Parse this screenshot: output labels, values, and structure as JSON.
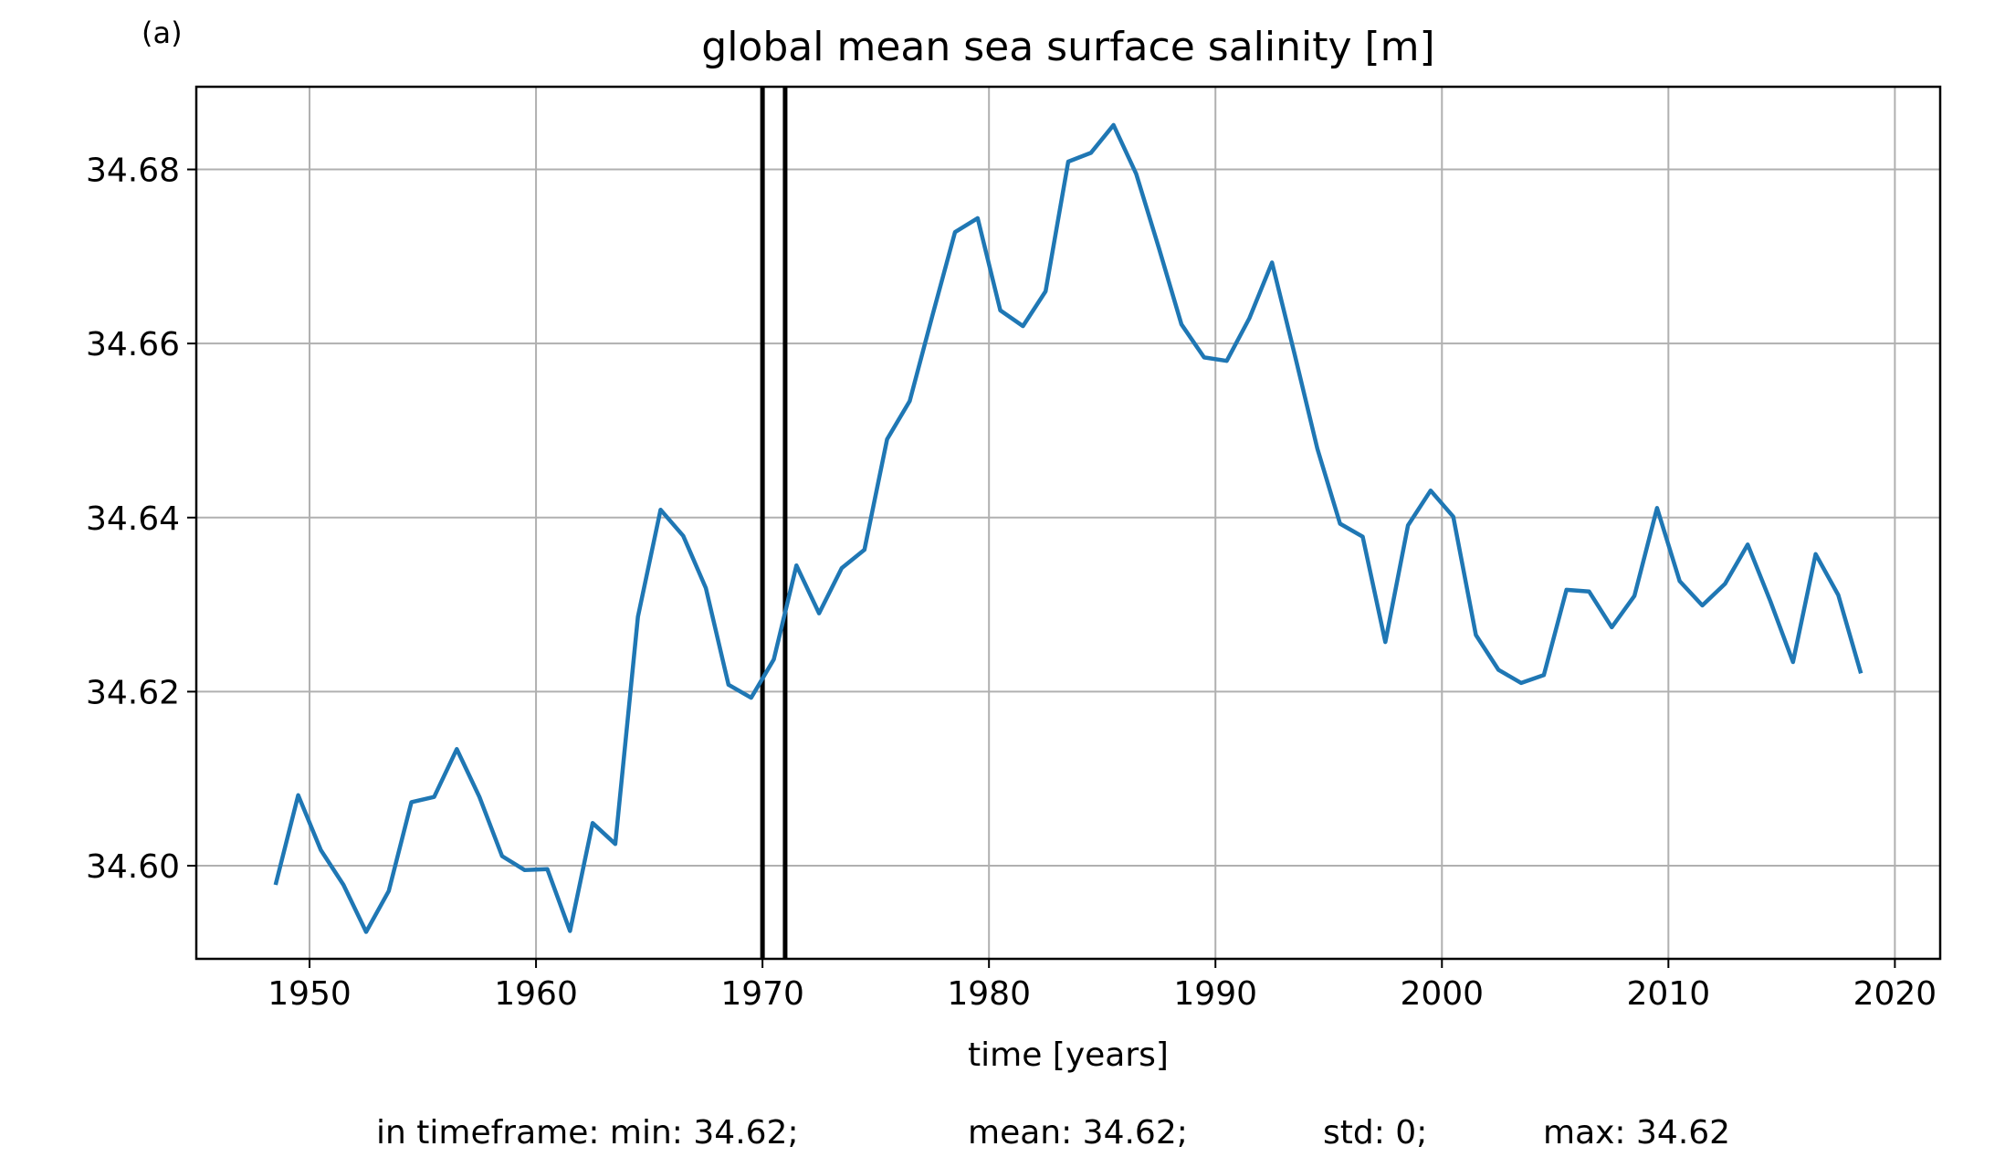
{
  "panel_label": "(a)",
  "chart_data": {
    "type": "line",
    "title": "global mean sea surface salinity [m]",
    "xlabel": "time [years]",
    "ylabel": "",
    "xlim": [
      1945,
      2022
    ],
    "ylim": [
      34.5893,
      34.6895
    ],
    "grid": true,
    "x_ticks": [
      1950,
      1960,
      1970,
      1980,
      1990,
      2000,
      2010,
      2020
    ],
    "y_ticks": [
      34.6,
      34.62,
      34.64,
      34.66,
      34.68
    ],
    "y_tick_labels": [
      "34.60",
      "34.62",
      "34.64",
      "34.66",
      "34.68"
    ],
    "vlines": [
      1970,
      1971
    ],
    "series": [
      {
        "color": "#1f77b4",
        "x": [
          1948.5,
          1949.5,
          1950.5,
          1951.5,
          1952.5,
          1953.5,
          1954.5,
          1955.5,
          1956.5,
          1957.5,
          1958.5,
          1959.5,
          1960.5,
          1961.5,
          1962.5,
          1963.5,
          1964.5,
          1965.5,
          1966.5,
          1967.5,
          1968.5,
          1969.5,
          1970.5,
          1971.5,
          1972.5,
          1973.5,
          1974.5,
          1975.5,
          1976.5,
          1977.5,
          1978.5,
          1979.5,
          1980.5,
          1981.5,
          1982.5,
          1983.5,
          1984.5,
          1985.5,
          1986.5,
          1987.5,
          1988.5,
          1989.5,
          1990.5,
          1991.5,
          1992.5,
          1993.5,
          1994.5,
          1995.5,
          1996.5,
          1997.5,
          1998.5,
          1999.5,
          2000.5,
          2001.5,
          2002.5,
          2003.5,
          2004.5,
          2005.5,
          2006.5,
          2007.5,
          2008.5,
          2009.5,
          2010.5,
          2011.5,
          2012.5,
          2013.5,
          2014.5,
          2015.5,
          2016.5,
          2017.5,
          2018.5
        ],
        "y": [
          34.5978,
          34.6081,
          34.6018,
          34.5978,
          34.5924,
          34.5971,
          34.6073,
          34.6079,
          34.6134,
          34.6079,
          34.6011,
          34.5995,
          34.5996,
          34.5925,
          34.6049,
          34.6025,
          34.6286,
          34.6409,
          34.6379,
          34.6319,
          34.6208,
          34.6193,
          34.6237,
          34.6345,
          34.629,
          34.6342,
          34.6363,
          34.649,
          34.6534,
          34.6632,
          34.6728,
          34.6744,
          34.6638,
          34.662,
          34.666,
          34.6809,
          34.6819,
          34.6851,
          34.6795,
          34.671,
          34.6622,
          34.6584,
          34.658,
          34.6629,
          34.6693,
          34.6587,
          34.6479,
          34.6393,
          34.6378,
          34.6257,
          34.6391,
          34.6431,
          34.6401,
          34.6265,
          34.6225,
          34.621,
          34.6219,
          34.6317,
          34.6315,
          34.6274,
          34.631,
          34.6411,
          34.6327,
          34.6299,
          34.6324,
          34.6369,
          34.6304,
          34.6234,
          34.6358,
          34.6311,
          34.6221
        ]
      }
    ],
    "footer": {
      "min": "in timeframe: min: 34.62;",
      "mean": "mean: 34.62;",
      "std": "std: 0;",
      "max": "max: 34.62"
    }
  }
}
